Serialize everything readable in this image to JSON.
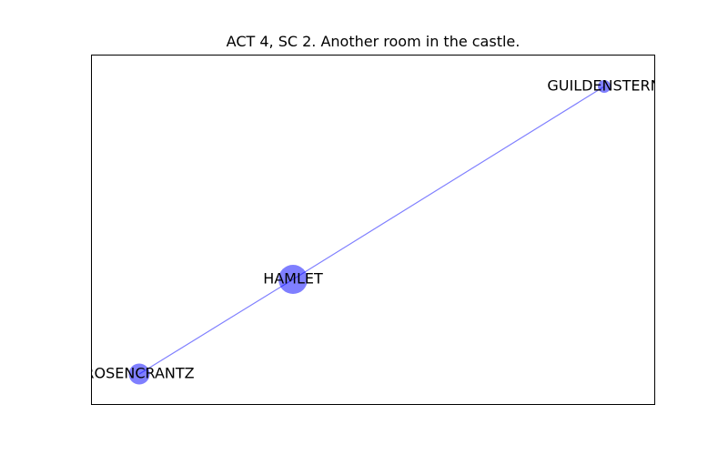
{
  "title": "ACT 4, SC 2. Another room in the castle.",
  "colors": {
    "node": "#0000ff",
    "edge": "#0000ff",
    "frame": "#000000",
    "background": "#ffffff"
  },
  "network": {
    "nodes": [
      {
        "id": "HAMLET",
        "label": "HAMLET",
        "weight": 2
      },
      {
        "id": "ROSENCRANTZ",
        "label": "ROSENCRANTZ",
        "weight": 1
      },
      {
        "id": "GUILDENSTERN",
        "label": "GUILDENSTERN",
        "weight": 0
      }
    ],
    "edges": [
      {
        "source": "ROSENCRANTZ",
        "target": "HAMLET"
      },
      {
        "source": "HAMLET",
        "target": "GUILDENSTERN"
      }
    ]
  }
}
